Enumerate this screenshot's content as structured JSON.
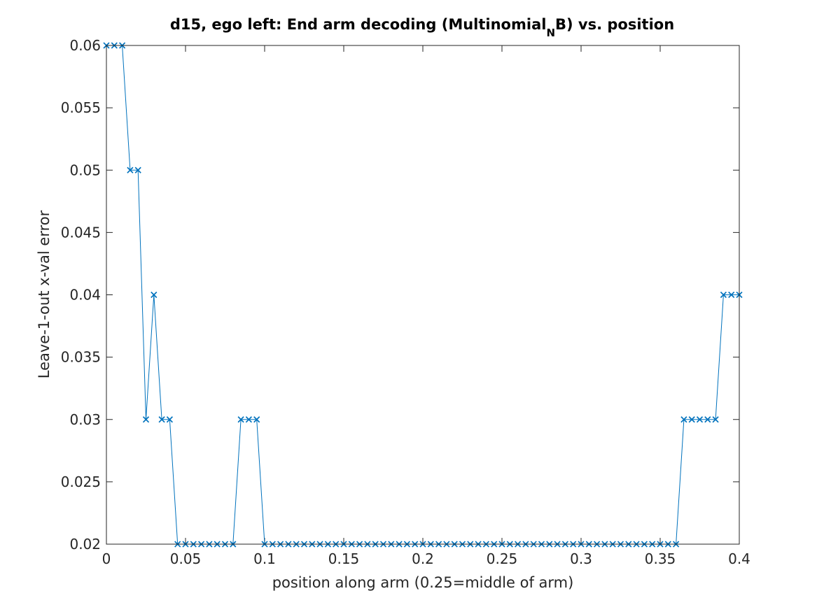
{
  "chart_data": {
    "type": "line",
    "title": "d15, ego left: End arm decoding (Multinomial_NB) vs. position",
    "title_parts": {
      "before": "d15, ego left: End arm decoding (Multinomial",
      "subscript": "N",
      "after": "B) vs. position"
    },
    "xlabel": "position along arm (0.25=middle of arm)",
    "ylabel": "Leave-1-out x-val error",
    "xlim": [
      0,
      0.4
    ],
    "ylim": [
      0.02,
      0.06
    ],
    "xticks": [
      "0",
      "0.05",
      "0.1",
      "0.15",
      "0.2",
      "0.25",
      "0.3",
      "0.35",
      "0.4"
    ],
    "yticks": [
      "0.02",
      "0.025",
      "0.03",
      "0.035",
      "0.04",
      "0.045",
      "0.05",
      "0.055",
      "0.06"
    ],
    "grid": false,
    "legend": "none",
    "marker": "x",
    "color": "#0072BD",
    "series": [
      {
        "x": [
          0,
          0.005,
          0.01,
          0.015,
          0.02,
          0.025,
          0.03,
          0.035,
          0.04,
          0.045,
          0.05,
          0.055,
          0.06,
          0.065,
          0.07,
          0.075,
          0.08,
          0.085,
          0.09,
          0.095,
          0.1,
          0.105,
          0.11,
          0.115,
          0.12,
          0.125,
          0.13,
          0.135,
          0.14,
          0.145,
          0.15,
          0.155,
          0.16,
          0.165,
          0.17,
          0.175,
          0.18,
          0.185,
          0.19,
          0.195,
          0.2,
          0.205,
          0.21,
          0.215,
          0.22,
          0.225,
          0.23,
          0.235,
          0.24,
          0.245,
          0.25,
          0.255,
          0.26,
          0.265,
          0.27,
          0.275,
          0.28,
          0.285,
          0.29,
          0.295,
          0.3,
          0.305,
          0.31,
          0.315,
          0.32,
          0.325,
          0.33,
          0.335,
          0.34,
          0.345,
          0.35,
          0.355,
          0.36,
          0.365,
          0.37,
          0.375,
          0.38,
          0.385,
          0.39,
          0.395,
          0.4
        ],
        "y": [
          0.06,
          0.06,
          0.06,
          0.05,
          0.05,
          0.03,
          0.04,
          0.03,
          0.03,
          0.02,
          0.02,
          0.02,
          0.02,
          0.02,
          0.02,
          0.02,
          0.02,
          0.03,
          0.03,
          0.03,
          0.02,
          0.02,
          0.02,
          0.02,
          0.02,
          0.02,
          0.02,
          0.02,
          0.02,
          0.02,
          0.02,
          0.02,
          0.02,
          0.02,
          0.02,
          0.02,
          0.02,
          0.02,
          0.02,
          0.02,
          0.02,
          0.02,
          0.02,
          0.02,
          0.02,
          0.02,
          0.02,
          0.02,
          0.02,
          0.02,
          0.02,
          0.02,
          0.02,
          0.02,
          0.02,
          0.02,
          0.02,
          0.02,
          0.02,
          0.02,
          0.02,
          0.02,
          0.02,
          0.02,
          0.02,
          0.02,
          0.02,
          0.02,
          0.02,
          0.02,
          0.02,
          0.02,
          0.02,
          0.03,
          0.03,
          0.03,
          0.03,
          0.03,
          0.04,
          0.04,
          0.04
        ]
      }
    ]
  }
}
